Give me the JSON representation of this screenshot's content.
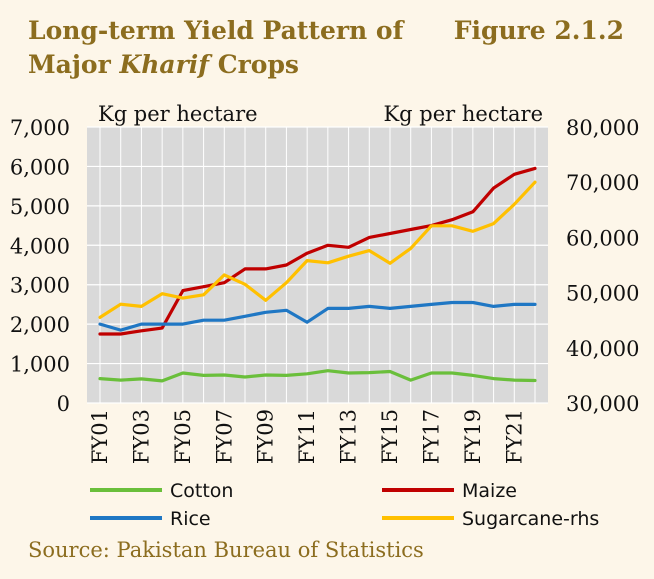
{
  "header": {
    "title_line1": "Long-term Yield Pattern of",
    "title_line2_prefix": "Major ",
    "title_line2_italic": "Kharif",
    "title_line2_suffix": " Crops",
    "figure_label": "Figure 2.1.2"
  },
  "source": "Source: Pakistan Bureau of Statistics",
  "colors": {
    "cotton": "#6abf3b",
    "maize": "#c00000",
    "rice": "#1f77c4",
    "sugarcane": "#ffc000",
    "plot_bg": "#d9d9d9",
    "grid": "#ffffff"
  },
  "chart_data": {
    "type": "line",
    "ylabel": "Kg per hectare",
    "y2label": "Kg per hectare",
    "ylim": [
      0,
      7000
    ],
    "y2lim": [
      30000,
      80000
    ],
    "yticks": [
      "0",
      "1,000",
      "2,000",
      "3,000",
      "4,000",
      "5,000",
      "6,000",
      "7,000"
    ],
    "y2ticks": [
      "30,000",
      "40,000",
      "50,000",
      "60,000",
      "70,000",
      "80,000"
    ],
    "grid": true,
    "x": [
      "FY01",
      "FY02",
      "FY03",
      "FY04",
      "FY05",
      "FY06",
      "FY07",
      "FY08",
      "FY09",
      "FY10",
      "FY11",
      "FY12",
      "FY13",
      "FY14",
      "FY15",
      "FY16",
      "FY17",
      "FY18",
      "FY19",
      "FY20",
      "FY21",
      "FY22"
    ],
    "xtick_labels": [
      "FY01",
      "FY03",
      "FY05",
      "FY07",
      "FY09",
      "FY11",
      "FY13",
      "FY15",
      "FY17",
      "FY19",
      "FY21"
    ],
    "series": [
      {
        "name": "Cotton",
        "axis": "left",
        "color_key": "cotton",
        "values": [
          620,
          580,
          610,
          560,
          760,
          700,
          710,
          660,
          710,
          700,
          740,
          820,
          760,
          770,
          800,
          580,
          760,
          760,
          700,
          620,
          580,
          570
        ]
      },
      {
        "name": "Maize",
        "axis": "left",
        "color_key": "maize",
        "values": [
          1750,
          1750,
          1830,
          1900,
          2850,
          2950,
          3050,
          3400,
          3400,
          3500,
          3800,
          4000,
          3950,
          4200,
          4300,
          4400,
          4500,
          4650,
          4850,
          5450,
          5800,
          5950
        ]
      },
      {
        "name": "Rice",
        "axis": "left",
        "color_key": "rice",
        "values": [
          2000,
          1850,
          2000,
          2000,
          2000,
          2100,
          2100,
          2200,
          2300,
          2350,
          2050,
          2400,
          2400,
          2450,
          2400,
          2450,
          2500,
          2550,
          2550,
          2450,
          2500,
          2500
        ]
      },
      {
        "name": "Sugarcane-rhs",
        "axis": "right",
        "color_key": "sugarcane",
        "values": [
          45500,
          47900,
          47500,
          49800,
          49000,
          49600,
          53200,
          51500,
          48600,
          51800,
          55800,
          55400,
          56600,
          57600,
          55300,
          58000,
          62100,
          62100,
          61100,
          62500,
          66000,
          70000
        ]
      }
    ],
    "legend": "bottom"
  }
}
